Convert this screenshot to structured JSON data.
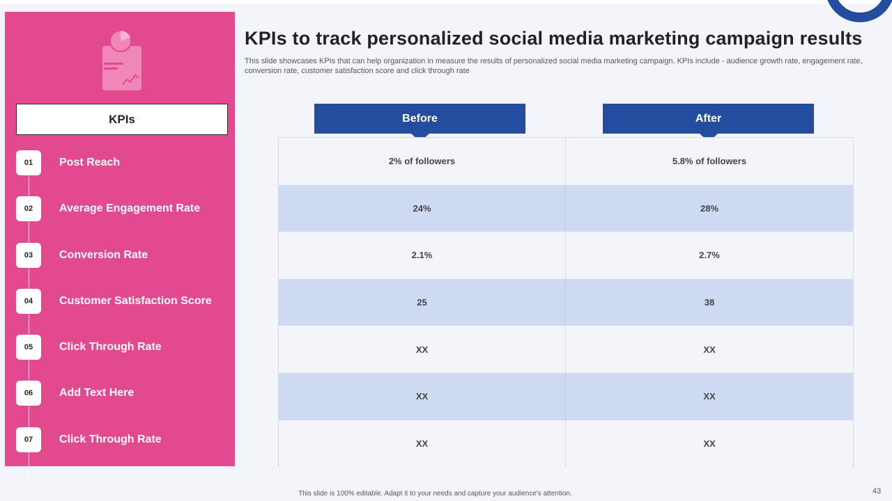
{
  "title": "KPIs to track personalized social media marketing campaign results",
  "subtitle": "This slide showcases KPIs that can help organization in measure the results of personalized social media marketing campaign. KPIs include - audience growth rate, engagement rate, conversion rate, customer satisfaction score and click through rate",
  "sidebar": {
    "header": "KPIs",
    "items": [
      {
        "num": "01",
        "label": "Post Reach"
      },
      {
        "num": "02",
        "label": "Average Engagement Rate"
      },
      {
        "num": "03",
        "label": "Conversion Rate"
      },
      {
        "num": "04",
        "label": "Customer Satisfaction Score"
      },
      {
        "num": "05",
        "label": "Click Through Rate"
      },
      {
        "num": "06",
        "label": "Add Text Here"
      },
      {
        "num": "07",
        "label": "Click Through Rate"
      }
    ]
  },
  "table": {
    "headers": [
      "Before",
      "After"
    ],
    "rows": [
      [
        "2%  of followers",
        "5.8%  of followers"
      ],
      [
        "24%",
        "28%"
      ],
      [
        "2.1%",
        "2.7%"
      ],
      [
        "25",
        "38"
      ],
      [
        "XX",
        "XX"
      ],
      [
        "XX",
        "XX"
      ],
      [
        "XX",
        "XX"
      ]
    ]
  },
  "footer": "This slide is 100% editable.  Adapt it to your needs and capture your audience's attention.",
  "page_number": "43",
  "colors": {
    "pink": "#e2498f",
    "navy": "#254d9f",
    "row_blue": "#cddaf2",
    "row_light": "#f4f5fa"
  }
}
